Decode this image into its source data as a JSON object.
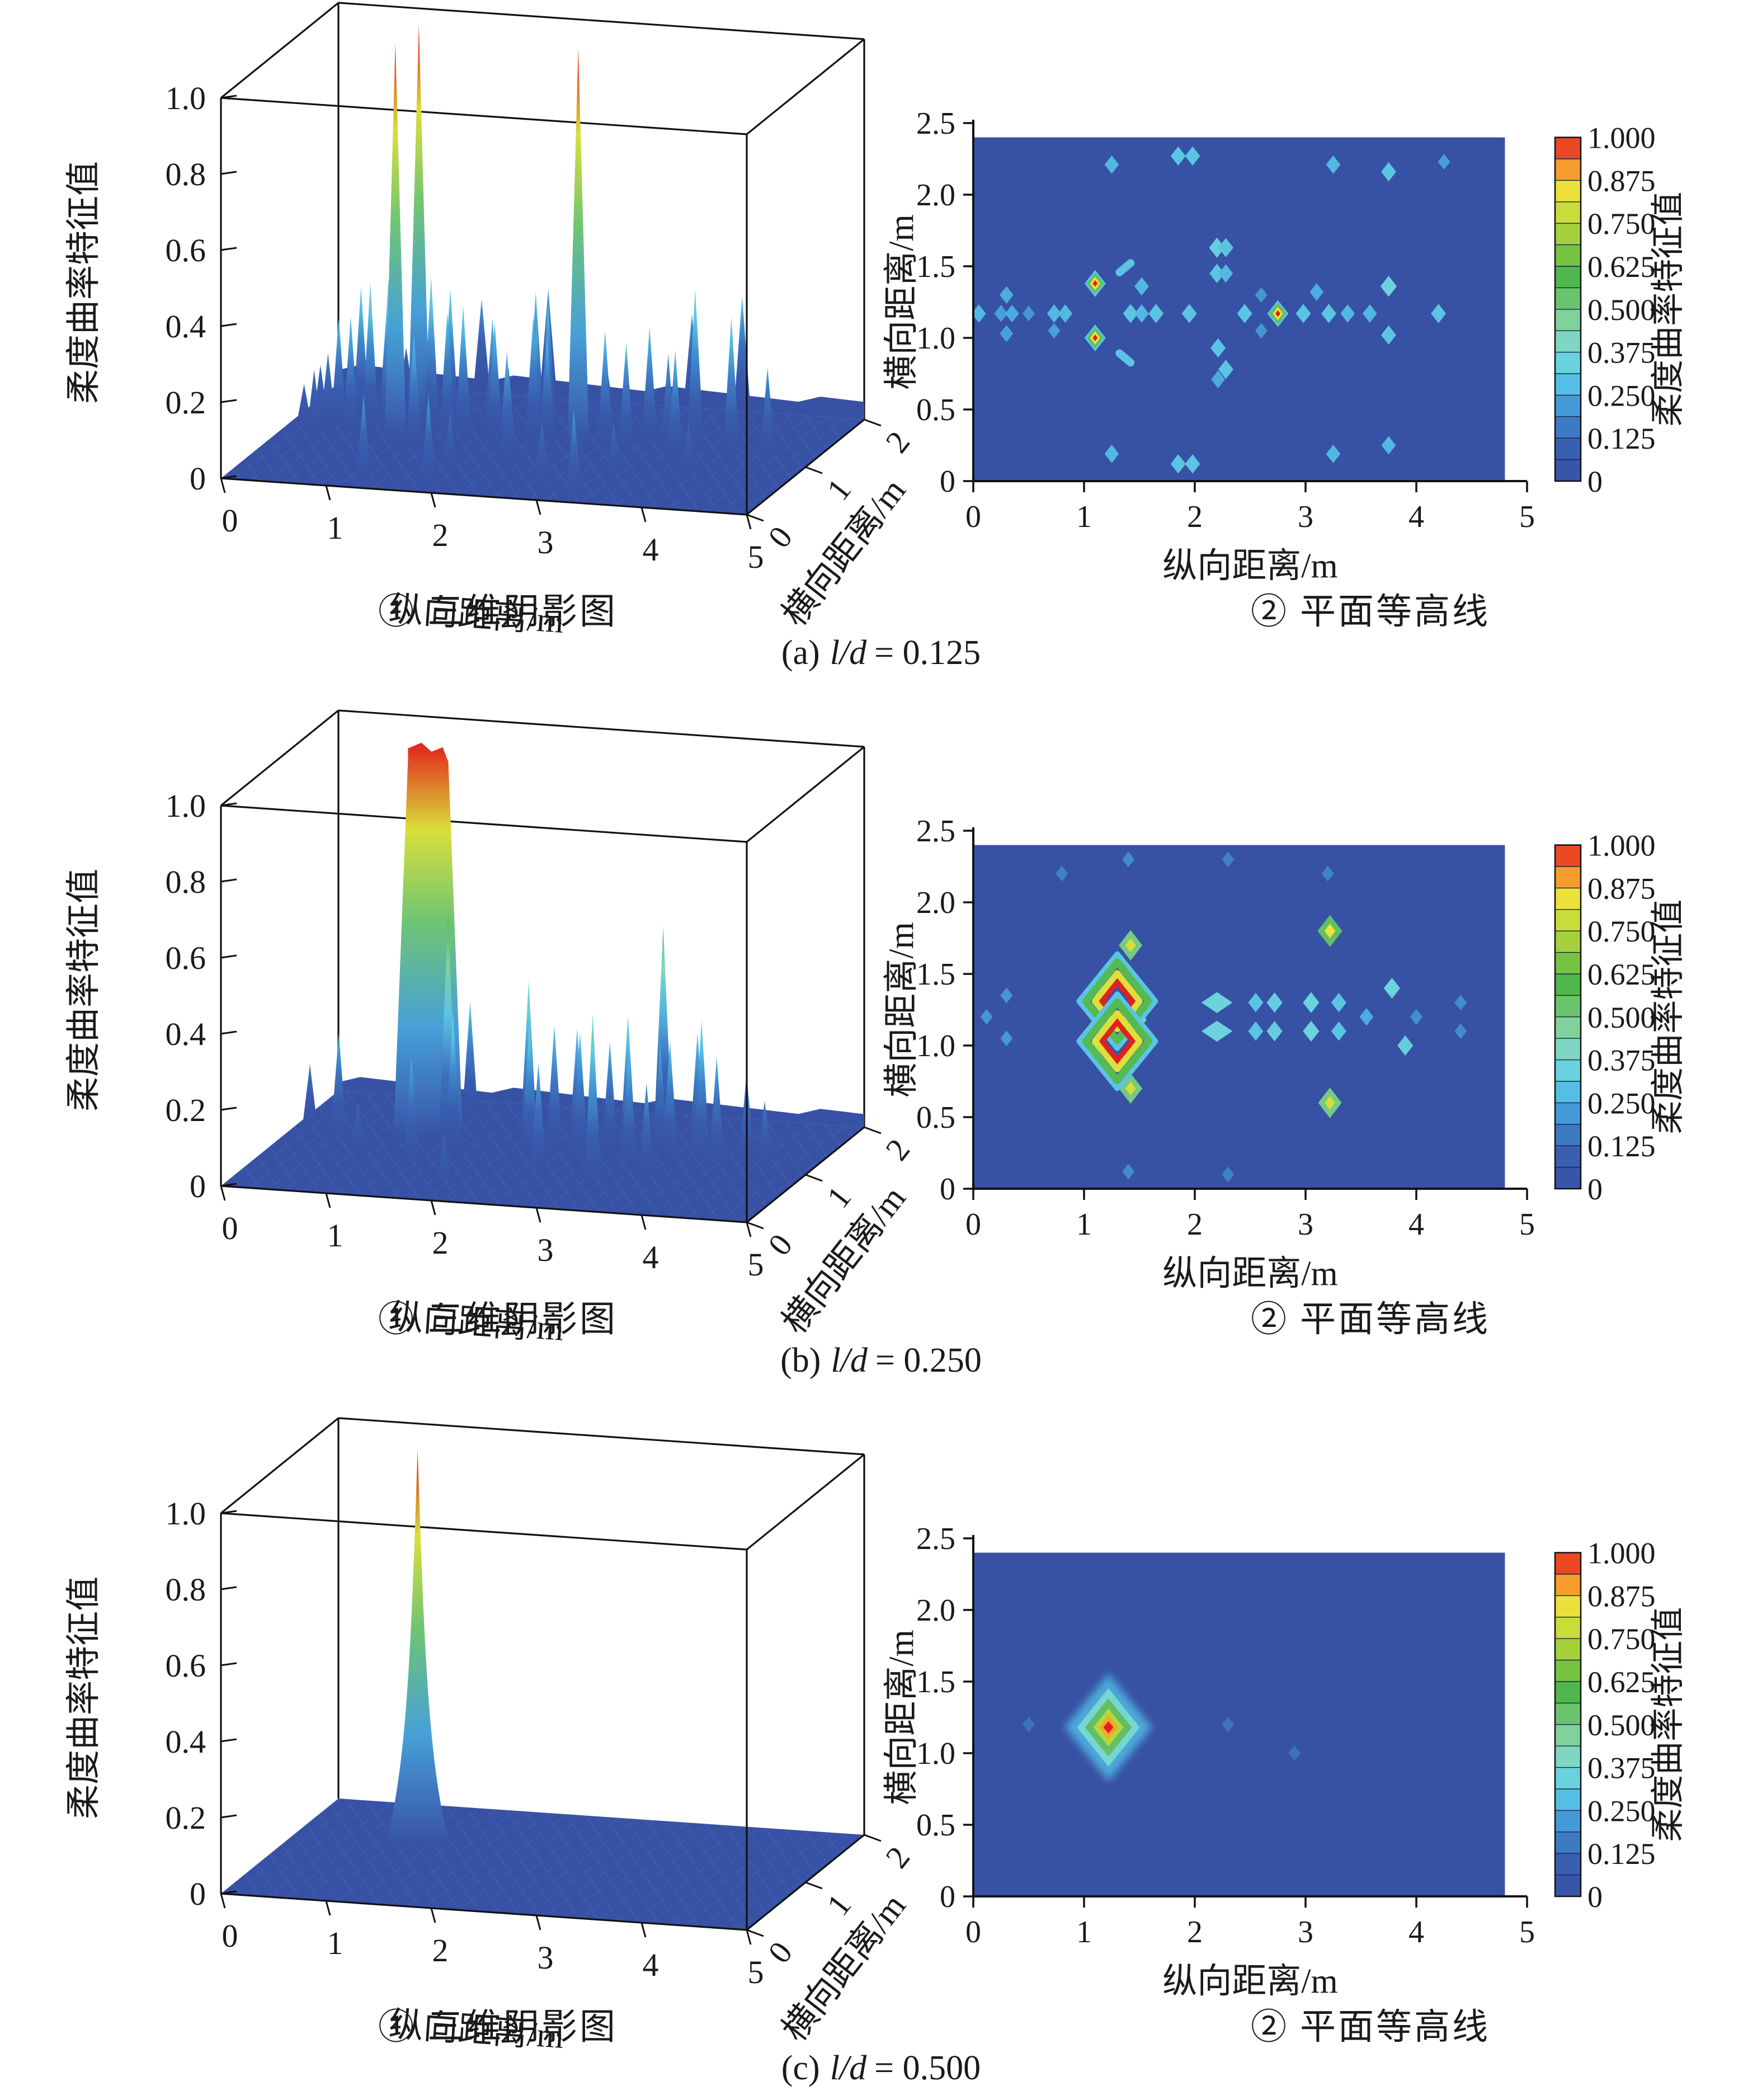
{
  "figure": {
    "rows": [
      {
        "caption_prefix": "(a)",
        "caption_math": "l/d",
        "caption_value": "= 0.125",
        "surface_chart": 0,
        "contour_chart": 1
      },
      {
        "caption_prefix": "(b)",
        "caption_math": "l/d",
        "caption_value": "= 0.250",
        "surface_chart": 2,
        "contour_chart": 3
      },
      {
        "caption_prefix": "(c)",
        "caption_math": "l/d",
        "caption_value": "= 0.500",
        "surface_chart": 4,
        "contour_chart": 5
      }
    ]
  },
  "colors": {
    "background": "#ffffff",
    "axis": "#111111",
    "field_blue": "#3751A5",
    "mesh_line": "#5570bb",
    "jet_stops": [
      [
        0,
        "#3751A5"
      ],
      [
        0.1,
        "#3960B1"
      ],
      [
        0.2,
        "#3F8FD2"
      ],
      [
        0.28,
        "#54BEE4"
      ],
      [
        0.36,
        "#6FD6DC"
      ],
      [
        0.44,
        "#8BD7B0"
      ],
      [
        0.52,
        "#6FC573"
      ],
      [
        0.6,
        "#4CB648"
      ],
      [
        0.7,
        "#9ACC3C"
      ],
      [
        0.78,
        "#C8DC3A"
      ],
      [
        0.85,
        "#EFE23A"
      ],
      [
        0.9,
        "#F6A52E"
      ],
      [
        0.95,
        "#EE5F28"
      ],
      [
        1,
        "#E2211C"
      ]
    ]
  },
  "colorbar": {
    "ticks": [
      "1.000",
      "0.875",
      "0.750",
      "0.625",
      "0.500",
      "0.375",
      "0.250",
      "0.125",
      "0"
    ],
    "label": "柔度曲率特征值",
    "segments": 16,
    "min": 0,
    "max": 1
  },
  "chart_data": [
    {
      "id": "a_surface",
      "type": "heatmap",
      "subtype": "surface3d-spikes",
      "title": "① 三维阴影图",
      "xlabel": "纵向距离/m",
      "ylabel": "横向距离/m",
      "zlabel": "柔度曲率特征值",
      "xlim": [
        0,
        5
      ],
      "ylim": [
        0,
        2
      ],
      "zlim": [
        0,
        1
      ],
      "xticks": [
        "0",
        "1",
        "2",
        "3",
        "4",
        "5"
      ],
      "yticks": [
        "0",
        "1",
        "2"
      ],
      "zticks": [
        "1.0",
        "0.8",
        "0.6",
        "0.4",
        "0.2",
        "0"
      ],
      "peaks": [
        [
          1.1,
          1.4,
          1.04
        ],
        [
          1.1,
          1.0,
          1.04
        ],
        [
          2.75,
          1.16,
          1.04
        ],
        [
          0.12,
          1.2,
          0.1
        ],
        [
          0.22,
          1.3,
          0.14
        ],
        [
          0.3,
          1.05,
          0.16
        ],
        [
          0.32,
          1.25,
          0.18
        ],
        [
          0.45,
          1.2,
          0.28
        ],
        [
          0.55,
          1.4,
          0.34
        ],
        [
          0.62,
          1.1,
          0.3
        ],
        [
          0.75,
          1.2,
          0.38
        ],
        [
          0.85,
          1.3,
          0.3
        ],
        [
          0.95,
          1.15,
          0.4
        ],
        [
          1.3,
          1.25,
          0.4
        ],
        [
          1.36,
          1.47,
          0.34
        ],
        [
          1.36,
          0.85,
          0.3
        ],
        [
          1.5,
          1.17,
          0.32
        ],
        [
          1.65,
          1.17,
          0.34
        ],
        [
          1.8,
          1.4,
          0.28
        ],
        [
          1.95,
          1.17,
          0.3
        ],
        [
          2.1,
          1.6,
          0.33
        ],
        [
          2.2,
          1.63,
          0.3
        ],
        [
          2.2,
          1.43,
          0.27
        ],
        [
          2.2,
          0.93,
          0.26
        ],
        [
          2.3,
          0.78,
          0.24
        ],
        [
          2.3,
          1.2,
          0.32
        ],
        [
          2.45,
          1.17,
          0.28
        ],
        [
          3.0,
          1.17,
          0.3
        ],
        [
          3.2,
          1.17,
          0.27
        ],
        [
          3.35,
          1.3,
          0.3
        ],
        [
          3.6,
          1.17,
          0.25
        ],
        [
          3.75,
          1.36,
          0.4
        ],
        [
          3.75,
          1.02,
          0.28
        ],
        [
          4.2,
          1.17,
          0.36
        ],
        [
          4.5,
          1.25,
          0.22
        ],
        [
          1.25,
          2.2,
          0.22
        ],
        [
          1.85,
          2.26,
          0.25
        ],
        [
          3.25,
          2.2,
          0.22
        ],
        [
          3.75,
          2.16,
          0.28
        ],
        [
          1.25,
          0.19,
          0.22
        ],
        [
          1.9,
          0.13,
          0.24
        ],
        [
          3.25,
          0.19,
          0.22
        ],
        [
          2.8,
          0.45,
          0.14
        ],
        [
          1.9,
          0.5,
          0.15
        ],
        [
          3.4,
          0.6,
          0.14
        ],
        [
          4.0,
          0.8,
          0.12
        ],
        [
          0.7,
          1.9,
          0.12
        ],
        [
          2.6,
          1.9,
          0.12
        ]
      ]
    },
    {
      "id": "a_contour",
      "type": "heatmap",
      "subtype": "filled-contour",
      "title": "② 平面等高线",
      "xlabel": "纵向距离/m",
      "ylabel": "横向距离/m",
      "xlim": [
        0,
        5
      ],
      "ylim": [
        0,
        2.5
      ],
      "grid_extent": [
        4.8,
        2.4
      ],
      "background_value": 0,
      "xticks": [
        "0",
        "1",
        "2",
        "3",
        "4",
        "5"
      ],
      "yticks": [
        "0",
        "0.5",
        "1.0",
        "1.5",
        "2.0",
        "2.5"
      ],
      "points": [
        [
          0.05,
          1.17,
          0.22
        ],
        [
          0.25,
          1.17,
          0.18
        ],
        [
          0.3,
          1.3,
          0.2
        ],
        [
          0.3,
          1.03,
          0.18
        ],
        [
          0.35,
          1.17,
          0.2
        ],
        [
          0.73,
          1.17,
          0.22
        ],
        [
          0.83,
          1.17,
          0.22
        ],
        [
          0.73,
          1.05,
          0.14
        ],
        [
          1.42,
          1.17,
          0.25
        ],
        [
          1.52,
          1.17,
          0.22
        ],
        [
          1.52,
          1.36,
          0.22
        ],
        [
          1.65,
          1.17,
          0.25
        ],
        [
          1.95,
          1.17,
          0.25
        ],
        [
          2.2,
          1.63,
          0.28
        ],
        [
          2.28,
          1.63,
          0.25
        ],
        [
          2.2,
          1.45,
          0.25
        ],
        [
          2.28,
          1.45,
          0.22
        ],
        [
          2.21,
          0.93,
          0.25
        ],
        [
          2.28,
          0.78,
          0.25
        ],
        [
          2.21,
          0.71,
          0.2
        ],
        [
          2.45,
          1.17,
          0.25
        ],
        [
          2.98,
          1.17,
          0.25
        ],
        [
          3.1,
          1.32,
          0.2
        ],
        [
          3.21,
          1.17,
          0.25
        ],
        [
          3.38,
          1.17,
          0.22
        ],
        [
          3.58,
          1.17,
          0.22
        ],
        [
          3.75,
          1.36,
          0.3
        ],
        [
          3.75,
          1.02,
          0.25
        ],
        [
          4.2,
          1.17,
          0.25
        ],
        [
          1.25,
          2.21,
          0.22
        ],
        [
          1.85,
          2.27,
          0.25
        ],
        [
          1.98,
          2.27,
          0.25
        ],
        [
          3.25,
          2.21,
          0.22
        ],
        [
          3.75,
          2.16,
          0.25
        ],
        [
          4.25,
          2.23,
          0.14
        ],
        [
          1.25,
          0.19,
          0.22
        ],
        [
          1.85,
          0.12,
          0.25
        ],
        [
          1.98,
          0.12,
          0.25
        ],
        [
          3.25,
          0.19,
          0.22
        ],
        [
          3.75,
          0.25,
          0.22
        ],
        [
          0.5,
          1.17,
          0.12
        ],
        [
          2.6,
          1.3,
          0.12
        ],
        [
          2.6,
          1.05,
          0.12
        ]
      ],
      "hot_points": [
        [
          1.1,
          1.38
        ],
        [
          1.1,
          1.0
        ],
        [
          2.75,
          1.17
        ]
      ],
      "bars": [
        [
          1.37,
          1.49,
          -40
        ],
        [
          1.37,
          0.86,
          40
        ]
      ]
    },
    {
      "id": "b_surface",
      "type": "heatmap",
      "subtype": "surface3d-spikes",
      "title": "① 三维阴影图",
      "xlabel": "纵向距离/m",
      "ylabel": "横向距离/m",
      "zlabel": "柔度曲率特征值",
      "xlim": [
        0,
        5
      ],
      "ylim": [
        0,
        2
      ],
      "zlim": [
        0,
        1
      ],
      "xticks": [
        "0",
        "1",
        "2",
        "3",
        "4",
        "5"
      ],
      "yticks": [
        "0",
        "1",
        "2"
      ],
      "zticks": [
        "1.0",
        "0.8",
        "0.6",
        "0.4",
        "0.2",
        "0"
      ],
      "peaks": [
        [
          1.3,
          1.2,
          1.04,
          "col"
        ],
        [
          1.08,
          1.38,
          0.46
        ],
        [
          1.5,
          1.18,
          0.6
        ],
        [
          1.62,
          1.05,
          0.36
        ],
        [
          0.45,
          1.2,
          0.26
        ],
        [
          0.12,
          1.3,
          0.16
        ],
        [
          2.2,
          1.3,
          0.42
        ],
        [
          2.32,
          1.1,
          0.34
        ],
        [
          2.5,
          1.2,
          0.32
        ],
        [
          2.65,
          1.32,
          0.3
        ],
        [
          2.8,
          1.1,
          0.32
        ],
        [
          3.0,
          1.25,
          0.28
        ],
        [
          3.2,
          1.8,
          0.52
        ],
        [
          3.2,
          1.2,
          0.36
        ],
        [
          3.32,
          1.0,
          0.3
        ],
        [
          3.45,
          1.3,
          0.28
        ],
        [
          3.6,
          1.2,
          0.3
        ],
        [
          3.2,
          0.6,
          0.44
        ],
        [
          3.75,
          1.4,
          0.3
        ],
        [
          3.9,
          1.2,
          0.36
        ],
        [
          4.1,
          1.1,
          0.28
        ],
        [
          4.3,
          1.25,
          0.22
        ],
        [
          1.42,
          1.7,
          0.3
        ],
        [
          1.42,
          0.7,
          0.28
        ],
        [
          2.6,
          0.75,
          0.28
        ],
        [
          3.6,
          0.8,
          0.24
        ],
        [
          4.5,
          1.2,
          0.16
        ],
        [
          1.9,
          0.4,
          0.12
        ],
        [
          0.8,
          0.9,
          0.12
        ]
      ]
    },
    {
      "id": "b_contour",
      "type": "heatmap",
      "subtype": "filled-contour",
      "title": "② 平面等高线",
      "xlabel": "纵向距离/m",
      "ylabel": "横向距离/m",
      "xlim": [
        0,
        5
      ],
      "ylim": [
        0,
        2.5
      ],
      "grid_extent": [
        4.8,
        2.4
      ],
      "background_value": 0,
      "xticks": [
        "0",
        "1",
        "2",
        "3",
        "4",
        "5"
      ],
      "yticks": [
        "0",
        "0.5",
        "1.0",
        "1.5",
        "2.0",
        "2.5"
      ],
      "points": [
        [
          1.12,
          1.4,
          0.3
        ],
        [
          1.12,
          1.0,
          0.3
        ],
        [
          1.48,
          1.18,
          0.4
        ],
        [
          1.42,
          1.7,
          0.5
        ],
        [
          1.42,
          0.7,
          0.5
        ],
        [
          3.22,
          1.8,
          0.55
        ],
        [
          3.22,
          0.6,
          0.5
        ],
        [
          2.2,
          1.3,
          0.3,
          "w"
        ],
        [
          2.2,
          1.1,
          0.3,
          "w"
        ],
        [
          2.55,
          1.3,
          0.25
        ],
        [
          2.55,
          1.1,
          0.25
        ],
        [
          2.72,
          1.3,
          0.28
        ],
        [
          2.72,
          1.1,
          0.28
        ],
        [
          3.05,
          1.3,
          0.3
        ],
        [
          3.05,
          1.1,
          0.3
        ],
        [
          3.3,
          1.3,
          0.25
        ],
        [
          3.3,
          1.1,
          0.25
        ],
        [
          3.55,
          1.2,
          0.2
        ],
        [
          3.78,
          1.4,
          0.3
        ],
        [
          3.9,
          1.0,
          0.28
        ],
        [
          4.0,
          1.2,
          0.15
        ],
        [
          0.3,
          1.35,
          0.12
        ],
        [
          0.3,
          1.05,
          0.12
        ],
        [
          0.12,
          1.2,
          0.12
        ],
        [
          4.4,
          1.3,
          0.1
        ],
        [
          4.4,
          1.1,
          0.1
        ],
        [
          0.8,
          2.2,
          0.08
        ],
        [
          1.4,
          2.3,
          0.1
        ],
        [
          2.3,
          2.3,
          0.08
        ],
        [
          3.2,
          2.2,
          0.08
        ],
        [
          1.4,
          0.12,
          0.1
        ],
        [
          2.3,
          0.1,
          0.08
        ]
      ],
      "hot_points": [],
      "bars": [],
      "rings": [
        [
          1.3,
          1.31
        ],
        [
          1.3,
          1.03
        ]
      ]
    },
    {
      "id": "c_surface",
      "type": "heatmap",
      "subtype": "surface3d-spikes",
      "title": "① 三维阴影图",
      "xlabel": "纵向距离/m",
      "ylabel": "横向距离/m",
      "zlabel": "柔度曲率特征值",
      "xlim": [
        0,
        5
      ],
      "ylim": [
        0,
        2
      ],
      "zlim": [
        0,
        1
      ],
      "xticks": [
        "0",
        "1",
        "2",
        "3",
        "4",
        "5"
      ],
      "yticks": [
        "0",
        "1",
        "2"
      ],
      "zticks": [
        "1.0",
        "0.8",
        "0.6",
        "0.4",
        "0.2",
        "0"
      ],
      "peaks": [
        [
          1.2,
          1.2,
          1.04,
          "smooth"
        ],
        [
          2.9,
          1.2,
          0.03
        ],
        [
          3.8,
          1.1,
          0.02
        ]
      ]
    },
    {
      "id": "c_contour",
      "type": "heatmap",
      "subtype": "filled-contour",
      "title": "② 平面等高线",
      "xlabel": "纵向距离/m",
      "ylabel": "横向距离/m",
      "xlim": [
        0,
        5
      ],
      "ylim": [
        0,
        2.5
      ],
      "grid_extent": [
        4.8,
        2.4
      ],
      "background_value": 0,
      "xticks": [
        "0",
        "1",
        "2",
        "3",
        "4",
        "5"
      ],
      "yticks": [
        "0",
        "0.5",
        "1.0",
        "1.5",
        "2.0",
        "2.5"
      ],
      "points": [
        [
          0.5,
          1.2,
          0.04
        ],
        [
          2.3,
          1.2,
          0.04
        ],
        [
          2.9,
          1.0,
          0.03
        ]
      ],
      "hot_points": [],
      "bars": [],
      "blob": [
        1.22,
        1.18
      ]
    }
  ]
}
